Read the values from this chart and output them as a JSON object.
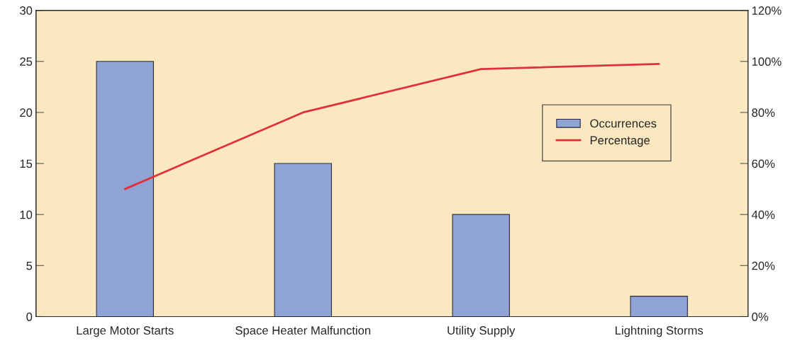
{
  "chart_data": {
    "type": "bar",
    "categories": [
      "Large Motor Starts",
      "Space Heater Malfunction",
      "Utility Supply",
      "Lightning Storms"
    ],
    "series": [
      {
        "name": "Occurrences",
        "color": "#8fa3d4",
        "values": [
          25,
          15,
          10,
          2
        ]
      },
      {
        "name": "Percentage",
        "type": "line",
        "axis": "y2",
        "color": "#e0303a",
        "values": [
          50,
          80,
          97,
          99
        ]
      }
    ],
    "ylim": [
      0,
      30
    ],
    "yticks": [
      0,
      5,
      10,
      15,
      20,
      25,
      30
    ],
    "y2lim": [
      0,
      120
    ],
    "y2ticks": [
      {
        "value": 0,
        "label": "0%"
      },
      {
        "value": 20,
        "label": "20%"
      },
      {
        "value": 40,
        "label": "40%"
      },
      {
        "value": 60,
        "label": "60%"
      },
      {
        "value": 80,
        "label": "80%"
      },
      {
        "value": 100,
        "label": "100%"
      },
      {
        "value": 120,
        "label": "120%"
      }
    ],
    "legend": "right",
    "grid": false
  }
}
